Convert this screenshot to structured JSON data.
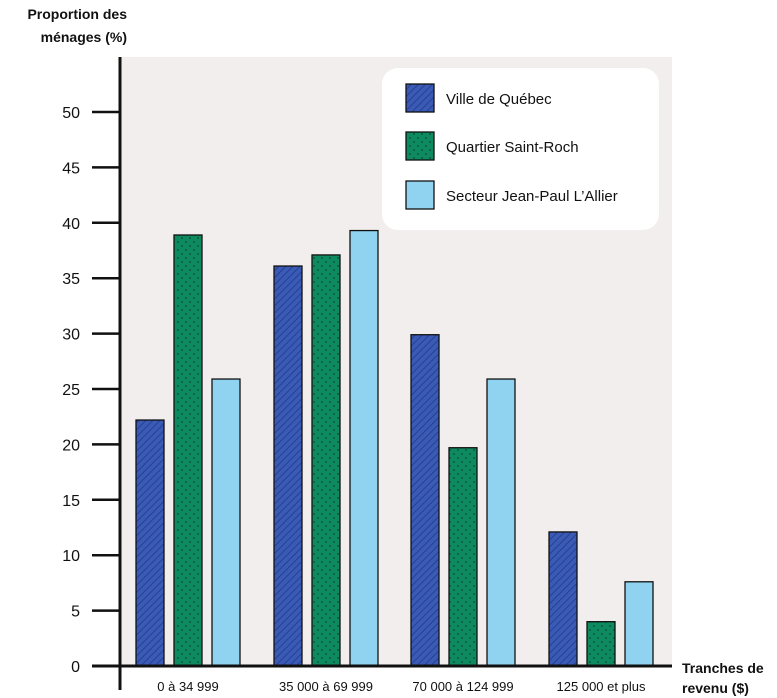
{
  "chart_data": {
    "type": "bar",
    "ylabel": [
      "Proportion des",
      "ménages (%)"
    ],
    "xlabel": [
      "Tranches de",
      "revenu ($)"
    ],
    "categories": [
      "0 à 34 999",
      "35 000 à 69 999",
      "70 000 à 124 999",
      "125 000 et plus"
    ],
    "series": [
      {
        "name": "Ville de Québec",
        "values": [
          22.2,
          36.1,
          29.9,
          12.1
        ],
        "color": "#3a5bb5",
        "pattern": "hatch"
      },
      {
        "name": "Quartier Saint-Roch",
        "values": [
          38.9,
          37.1,
          19.7,
          4.0
        ],
        "color": "#0e8a60",
        "pattern": "dots"
      },
      {
        "name": "Secteur Jean-Paul L’Allier",
        "values": [
          25.9,
          39.3,
          25.9,
          7.6
        ],
        "color": "#8fd3f0",
        "pattern": "solid"
      }
    ],
    "yticks": [
      "0",
      "5",
      "10",
      "15",
      "20",
      "25",
      "30",
      "35",
      "40",
      "45",
      "50"
    ],
    "ylim": [
      0,
      55
    ],
    "grid": false,
    "legend_position": "top-right",
    "plot_background": "#f3eeee"
  }
}
